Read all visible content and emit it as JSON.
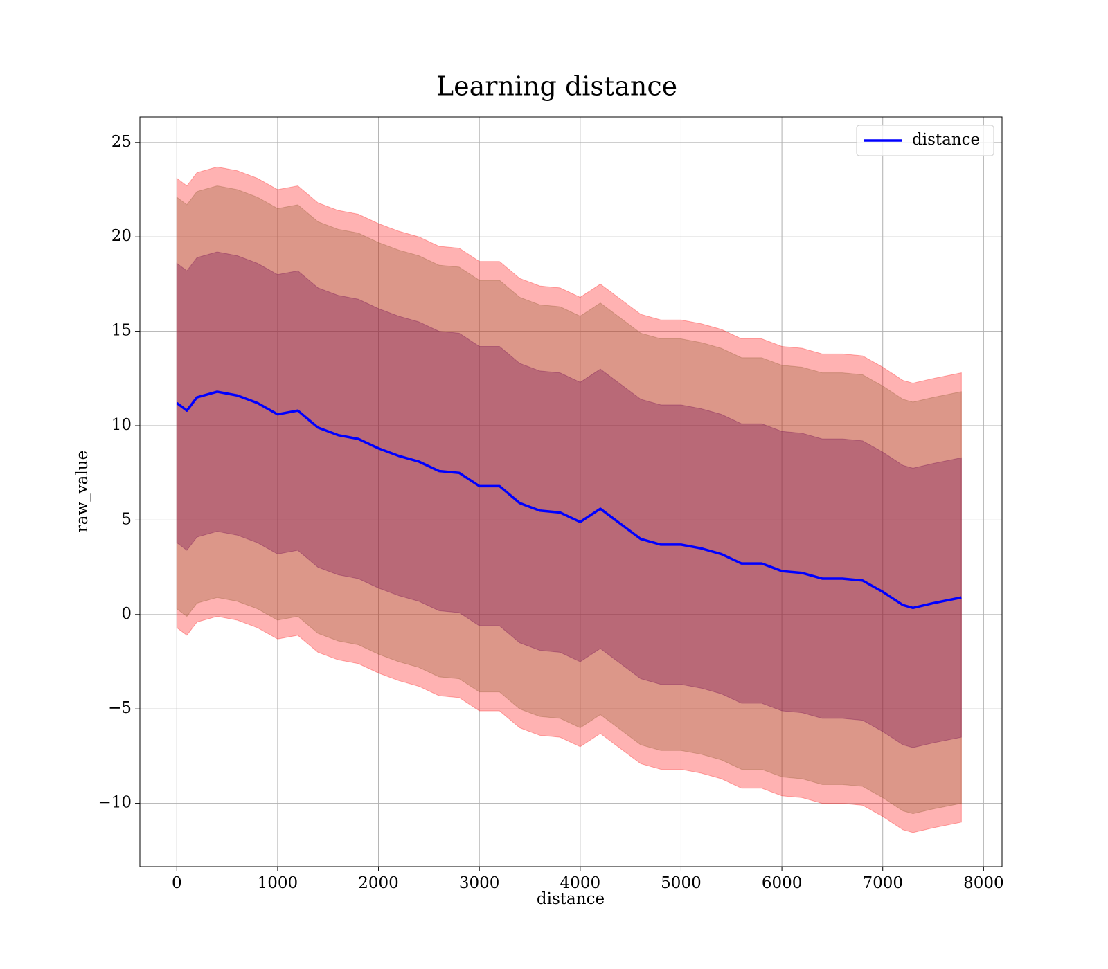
{
  "chart_data": {
    "type": "line",
    "title": "Learning distance",
    "xlabel": "distance",
    "ylabel": "raw_value",
    "x": [
      0,
      100,
      200,
      400,
      600,
      800,
      1000,
      1200,
      1400,
      1600,
      1800,
      2000,
      2200,
      2400,
      2600,
      2800,
      3000,
      3200,
      3400,
      3600,
      3800,
      4000,
      4200,
      4400,
      4600,
      4800,
      5000,
      5200,
      5400,
      5600,
      5800,
      6000,
      6200,
      6400,
      6600,
      6800,
      7000,
      7200,
      7300,
      7500,
      7780
    ],
    "series": [
      {
        "name": "distance",
        "color": "#0000ff",
        "values": [
          11.2,
          10.8,
          11.5,
          11.8,
          11.6,
          11.2,
          10.6,
          10.8,
          9.9,
          9.5,
          9.3,
          8.8,
          8.4,
          8.1,
          7.6,
          7.5,
          6.8,
          6.8,
          5.9,
          5.5,
          5.4,
          4.9,
          5.6,
          4.8,
          4.0,
          3.7,
          3.7,
          3.5,
          3.2,
          2.7,
          2.7,
          2.3,
          2.2,
          1.9,
          1.9,
          1.8,
          1.2,
          0.5,
          0.35,
          0.6,
          0.9
        ]
      }
    ],
    "bands": [
      {
        "color": "#ff0000",
        "upper": [
          23.1,
          22.7,
          23.4,
          23.7,
          23.5,
          23.1,
          22.5,
          22.7,
          21.8,
          21.4,
          21.2,
          20.7,
          20.3,
          20.0,
          19.5,
          19.4,
          18.7,
          18.7,
          17.8,
          17.4,
          17.3,
          16.8,
          17.5,
          16.7,
          15.9,
          15.6,
          15.6,
          15.4,
          15.1,
          14.6,
          14.6,
          14.2,
          14.1,
          13.8,
          13.8,
          13.7,
          13.1,
          12.4,
          12.25,
          12.5,
          12.8
        ],
        "lower": [
          -0.7,
          -1.1,
          -0.4,
          -0.1,
          -0.3,
          -0.7,
          -1.3,
          -1.1,
          -2.0,
          -2.4,
          -2.6,
          -3.1,
          -3.5,
          -3.8,
          -4.3,
          -4.4,
          -5.1,
          -5.1,
          -6.0,
          -6.4,
          -6.5,
          -7.0,
          -6.3,
          -7.1,
          -7.9,
          -8.2,
          -8.2,
          -8.4,
          -8.7,
          -9.2,
          -9.2,
          -9.6,
          -9.7,
          -10.0,
          -10.0,
          -10.1,
          -10.7,
          -11.4,
          -11.55,
          -11.3,
          -11.0
        ]
      },
      {
        "color": "#8b5a2b",
        "upper": [
          22.1,
          21.7,
          22.4,
          22.7,
          22.5,
          22.1,
          21.5,
          21.7,
          20.8,
          20.4,
          20.2,
          19.7,
          19.3,
          19.0,
          18.5,
          18.4,
          17.7,
          17.7,
          16.8,
          16.4,
          16.3,
          15.8,
          16.5,
          15.7,
          14.9,
          14.6,
          14.6,
          14.4,
          14.1,
          13.6,
          13.6,
          13.2,
          13.1,
          12.8,
          12.8,
          12.7,
          12.1,
          11.4,
          11.25,
          11.5,
          11.8
        ],
        "lower": [
          0.3,
          -0.1,
          0.6,
          0.9,
          0.7,
          0.3,
          -0.3,
          -0.1,
          -1.0,
          -1.4,
          -1.6,
          -2.1,
          -2.5,
          -2.8,
          -3.3,
          -3.4,
          -4.1,
          -4.1,
          -5.0,
          -5.4,
          -5.5,
          -6.0,
          -5.3,
          -6.1,
          -6.9,
          -7.2,
          -7.2,
          -7.4,
          -7.7,
          -8.2,
          -8.2,
          -8.6,
          -8.7,
          -9.0,
          -9.0,
          -9.1,
          -9.7,
          -10.4,
          -10.55,
          -10.3,
          -10.0
        ]
      },
      {
        "color": "#6a0050",
        "upper": [
          18.6,
          18.2,
          18.9,
          19.2,
          19.0,
          18.6,
          18.0,
          18.2,
          17.3,
          16.9,
          16.7,
          16.2,
          15.8,
          15.5,
          15.0,
          14.9,
          14.2,
          14.2,
          13.3,
          12.9,
          12.8,
          12.3,
          13.0,
          12.2,
          11.4,
          11.1,
          11.1,
          10.9,
          10.6,
          10.1,
          10.1,
          9.7,
          9.6,
          9.3,
          9.3,
          9.2,
          8.6,
          7.9,
          7.75,
          8.0,
          8.3
        ],
        "lower": [
          3.8,
          3.4,
          4.1,
          4.4,
          4.2,
          3.8,
          3.2,
          3.4,
          2.5,
          2.1,
          1.9,
          1.4,
          1.0,
          0.7,
          0.2,
          0.1,
          -0.6,
          -0.6,
          -1.5,
          -1.9,
          -2.0,
          -2.5,
          -1.8,
          -2.6,
          -3.4,
          -3.7,
          -3.7,
          -3.9,
          -4.2,
          -4.7,
          -4.7,
          -5.1,
          -5.2,
          -5.5,
          -5.5,
          -5.6,
          -6.2,
          -6.9,
          -7.05,
          -6.8,
          -6.5
        ]
      }
    ],
    "xlim": [
      -366,
      8183
    ],
    "xticks": [
      0,
      1000,
      2000,
      3000,
      4000,
      5000,
      6000,
      7000,
      8000
    ],
    "ylim": [
      -13.35,
      26.35
    ],
    "yticks": [
      {
        "value": -10,
        "label": "−10"
      },
      {
        "value": -5,
        "label": "−5"
      },
      0,
      5,
      10,
      15,
      20,
      25
    ],
    "grid": true,
    "legend": "upper right"
  }
}
